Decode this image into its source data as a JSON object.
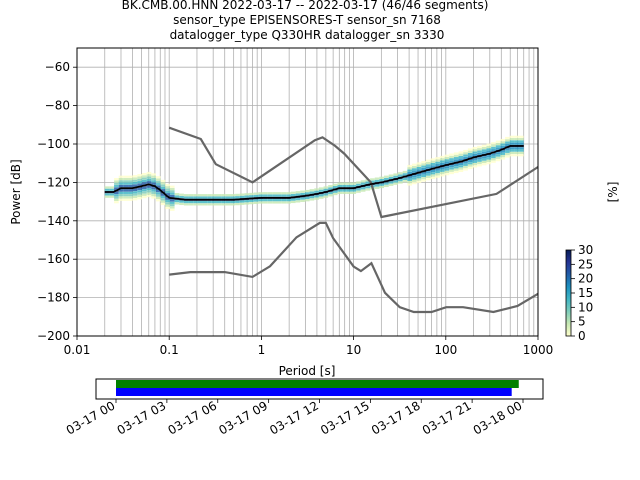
{
  "title_lines": [
    "BK.CMB.00.HNN   2022-03-17 -- 2022-03-17  (46/46 segments)",
    "sensor_type EPISENSORES-T sensor_sn 7168",
    "datalogger_type Q330HR datalogger_sn 3330"
  ],
  "colors": {
    "model": "#666666",
    "mode": "#000000",
    "grid": "#b0b0b0",
    "bar_green": "#008000",
    "bar_blue": "#0000ff",
    "colormap": [
      "#ffffcc",
      "#c7e9b4",
      "#7fcdbb",
      "#41b6c4",
      "#1d91c0",
      "#225ea8",
      "#253494",
      "#081d58"
    ]
  },
  "chart_data": [
    {
      "type": "heatmap",
      "title": "BK.CMB.00.HNN   2022-03-17 -- 2022-03-17  (46/46 segments)",
      "xlabel": "Period [s]",
      "ylabel": "Power [dB]",
      "xscale": "log",
      "xlim": [
        0.01,
        1000
      ],
      "ylim": [
        -200,
        -50
      ],
      "xticks": [
        0.01,
        0.1,
        1,
        10,
        100,
        1000
      ],
      "xtick_labels": [
        "0.01",
        "0.1",
        "1",
        "10",
        "100",
        "1000"
      ],
      "yticks": [
        -200,
        -180,
        -160,
        -140,
        -120,
        -100,
        -80,
        -60
      ],
      "ytick_labels": [
        "−200",
        "−180",
        "−160",
        "−140",
        "−120",
        "−100",
        "−80",
        "−60"
      ],
      "grid": true,
      "colorbar": {
        "label": "[%]",
        "range": [
          0,
          30
        ],
        "ticks": [
          0,
          5,
          10,
          15,
          20,
          25,
          30
        ]
      },
      "mode_curve": {
        "x": [
          0.02,
          0.025,
          0.03,
          0.04,
          0.05,
          0.06,
          0.07,
          0.08,
          0.1,
          0.15,
          0.2,
          0.3,
          0.5,
          1,
          2,
          3,
          4,
          5,
          7,
          10,
          15,
          20,
          30,
          50,
          70,
          100,
          150,
          200,
          300,
          400,
          500,
          700
        ],
        "y": [
          -125,
          -125,
          -123,
          -123,
          -122,
          -121,
          -122,
          -124,
          -128,
          -129,
          -129,
          -129,
          -129,
          -128,
          -128,
          -127,
          -126,
          -125,
          -123,
          -123,
          -121,
          -120,
          -118,
          -115,
          -113,
          -111,
          -109,
          -107,
          -105,
          -103,
          -101,
          -101
        ]
      },
      "high_noise_model": {
        "x": [
          0.1,
          0.22,
          0.32,
          0.8,
          3.8,
          4.6,
          6.3,
          7.9,
          15.4,
          20,
          354.8,
          1000
        ],
        "y": [
          -91.5,
          -97.4,
          -110.5,
          -120,
          -98,
          -96.5,
          -101,
          -105,
          -120,
          -138,
          -126,
          -112
        ]
      },
      "low_noise_model": {
        "x": [
          0.1,
          0.17,
          0.4,
          0.8,
          1.24,
          2.4,
          4.3,
          5,
          6,
          10,
          12,
          15.6,
          21.9,
          31.6,
          45,
          70,
          101,
          154,
          328,
          600,
          1000
        ],
        "y": [
          -168,
          -166.7,
          -166.7,
          -169.2,
          -163.7,
          -148.6,
          -141.1,
          -141.1,
          -149,
          -163.8,
          -166.2,
          -162.1,
          -177.5,
          -185,
          -187.5,
          -187.5,
          -185,
          -185,
          -187.5,
          -184.4,
          -178
        ]
      }
    },
    {
      "type": "bar",
      "title": "",
      "xticks": [
        "03-17 00",
        "03-17 03",
        "03-17 06",
        "03-17 09",
        "03-17 12",
        "03-17 15",
        "03-17 18",
        "03-17 21",
        "03-18 00"
      ],
      "series": [
        {
          "start": "03-17 00",
          "end": "03-17 23:45",
          "color": "green"
        },
        {
          "start": "03-17 00",
          "end": "03-17 23:20",
          "color": "blue"
        }
      ]
    }
  ]
}
